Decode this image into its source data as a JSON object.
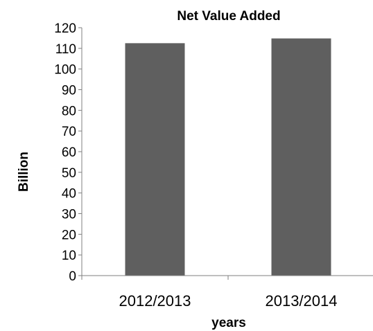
{
  "chart_data": {
    "type": "bar",
    "title": "Net Value Added",
    "xlabel": "years",
    "ylabel": "Billion",
    "categories": [
      "2012/2013",
      "2013/2014"
    ],
    "values": [
      112.5,
      114.8
    ],
    "ylim": [
      0,
      120
    ],
    "yticks": [
      0,
      10,
      20,
      30,
      40,
      50,
      60,
      70,
      80,
      90,
      100,
      110,
      120
    ],
    "grid": false,
    "legend": "none",
    "bar_color": "#5f5f5f"
  }
}
